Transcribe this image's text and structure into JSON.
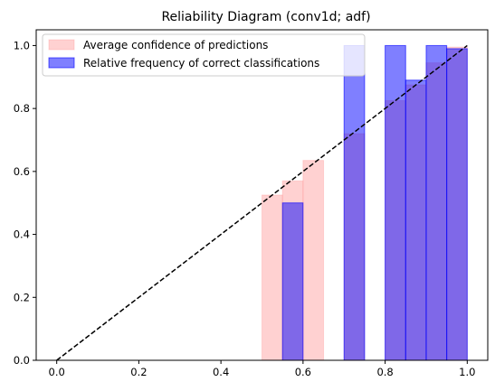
{
  "chart_data": {
    "type": "bar",
    "title": "Reliability Diagram (conv1d; adf)",
    "xlabel": "",
    "ylabel": "",
    "xlim": [
      -0.05,
      1.05
    ],
    "ylim": [
      0,
      1.05
    ],
    "x_ticks": [
      "0.0",
      "0.2",
      "0.4",
      "0.6",
      "0.8",
      "1.0"
    ],
    "y_ticks": [
      "0.0",
      "0.2",
      "0.4",
      "0.6",
      "0.8",
      "1.0"
    ],
    "bin_width": 0.05,
    "legend_position": "top-left",
    "grid": false,
    "series": [
      {
        "name": "Average confidence of predictions",
        "color": "#ff9999",
        "bins": [
          {
            "x": 0.5,
            "value": 0.525
          },
          {
            "x": 0.55,
            "value": 0.57
          },
          {
            "x": 0.6,
            "value": 0.635
          },
          {
            "x": 0.7,
            "value": 0.72
          },
          {
            "x": 0.8,
            "value": 0.825
          },
          {
            "x": 0.85,
            "value": 0.875
          },
          {
            "x": 0.9,
            "value": 0.945
          },
          {
            "x": 0.95,
            "value": 0.995
          }
        ]
      },
      {
        "name": "Relative frequency of correct classifications",
        "color": "#0000ff",
        "bins": [
          {
            "x": 0.55,
            "value": 0.5
          },
          {
            "x": 0.7,
            "value": 1.0
          },
          {
            "x": 0.8,
            "value": 1.0
          },
          {
            "x": 0.85,
            "value": 0.89
          },
          {
            "x": 0.9,
            "value": 1.0
          },
          {
            "x": 0.95,
            "value": 0.99
          }
        ]
      }
    ],
    "reference_line": {
      "style": "dashed",
      "color": "#000000",
      "from": [
        0,
        0
      ],
      "to": [
        1,
        1
      ]
    }
  }
}
